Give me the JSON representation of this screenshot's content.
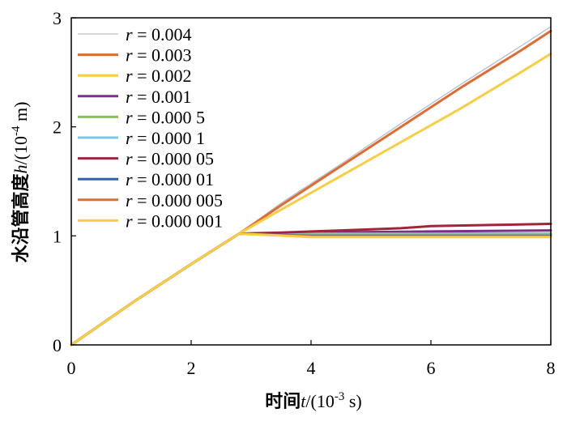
{
  "chart_data": {
    "type": "line",
    "xlabel_cn": "时间",
    "xlabel_var": "t",
    "xlabel_unit": "/(10",
    "xlabel_exp": "-3",
    "xlabel_unit_end": " s)",
    "ylabel_cn": "水沿管高度",
    "ylabel_var": "h",
    "ylabel_unit": "/(10",
    "ylabel_exp": "-4",
    "ylabel_unit_end": " m)",
    "xlim": [
      0,
      8
    ],
    "ylim": [
      0,
      3
    ],
    "x_ticks": [
      0,
      2,
      4,
      6,
      8
    ],
    "y_ticks": [
      0,
      1,
      2,
      3
    ],
    "x_tick_labels": [
      "0",
      "2",
      "4",
      "6",
      "8"
    ],
    "y_tick_labels": [
      "0",
      "1",
      "2",
      "3"
    ],
    "grid": false,
    "legend_position": "top-left",
    "series": [
      {
        "name": "r = 0.004",
        "legend_var": "r",
        "legend_val": " = 0.004",
        "color": "#b9bdc9",
        "width": 1.3,
        "x": [
          0,
          1,
          2,
          2.8,
          3.5,
          4.5,
          5.5,
          6.5,
          7.5,
          8
        ],
        "y": [
          0,
          0.38,
          0.74,
          1.02,
          1.3,
          1.66,
          2.03,
          2.39,
          2.74,
          2.92
        ]
      },
      {
        "name": "r = 0.003",
        "legend_var": "r",
        "legend_val": " = 0.003",
        "color": "#e06b32",
        "width": 3,
        "x": [
          0,
          1,
          2,
          2.8,
          3.5,
          4.5,
          5.5,
          6.5,
          7.5,
          8
        ],
        "y": [
          0,
          0.38,
          0.74,
          1.02,
          1.28,
          1.64,
          2.0,
          2.36,
          2.7,
          2.88
        ]
      },
      {
        "name": "r = 0.002",
        "legend_var": "r",
        "legend_val": " = 0.002",
        "color": "#f7cd42",
        "width": 3,
        "x": [
          0,
          1,
          2,
          2.8,
          3.5,
          4.5,
          5.5,
          6.5,
          7.5,
          8
        ],
        "y": [
          0,
          0.38,
          0.74,
          1.02,
          1.24,
          1.55,
          1.86,
          2.17,
          2.5,
          2.67
        ]
      },
      {
        "name": "r = 0.001",
        "legend_var": "r",
        "legend_val": " = 0.001",
        "color": "#7b2f8c",
        "width": 3,
        "x": [
          0,
          1,
          2,
          2.8,
          4,
          5,
          6,
          7,
          8
        ],
        "y": [
          0,
          0.38,
          0.74,
          1.02,
          1.03,
          1.035,
          1.04,
          1.045,
          1.05
        ]
      },
      {
        "name": "r = 0.000 5",
        "legend_var": "r",
        "legend_val": " = 0.000 5",
        "color": "#8cc04d",
        "width": 3,
        "x": [
          0,
          1,
          2,
          2.8,
          4,
          5,
          6,
          7,
          8
        ],
        "y": [
          0,
          0.38,
          0.74,
          1.02,
          1.02,
          1.02,
          1.02,
          1.02,
          1.02
        ]
      },
      {
        "name": "r = 0.000 1",
        "legend_var": "r",
        "legend_val": " = 0.000 1",
        "color": "#7cc6e8",
        "width": 3,
        "x": [
          0,
          1,
          2,
          2.8,
          4,
          5,
          6,
          7,
          8
        ],
        "y": [
          0,
          0.38,
          0.74,
          1.02,
          1.01,
          1.01,
          1.01,
          1.01,
          1.01
        ]
      },
      {
        "name": "r = 0.000 05",
        "legend_var": "r",
        "legend_val": " = 0.000 05",
        "color": "#a3233f",
        "width": 3,
        "x": [
          0,
          1,
          2,
          2.8,
          3.5,
          4.5,
          5.5,
          6,
          7,
          8
        ],
        "y": [
          0,
          0.38,
          0.74,
          1.02,
          1.03,
          1.05,
          1.07,
          1.09,
          1.1,
          1.11
        ]
      },
      {
        "name": "r = 0.000 01",
        "legend_var": "r",
        "legend_val": " = 0.000 01",
        "color": "#2f5fae",
        "width": 3,
        "x": [
          0,
          1,
          2,
          2.8,
          4,
          5,
          6,
          7,
          8
        ],
        "y": [
          0,
          0.38,
          0.74,
          1.02,
          1.0,
          1.0,
          1.0,
          1.0,
          1.0
        ]
      },
      {
        "name": "r = 0.000 005",
        "legend_var": "r",
        "legend_val": " = 0.000 005",
        "color": "#e06b32",
        "width": 3,
        "x": [
          0,
          1,
          2,
          2.8,
          4,
          5,
          6,
          7,
          8
        ],
        "y": [
          0,
          0.38,
          0.74,
          1.02,
          0.995,
          0.995,
          0.995,
          0.995,
          0.995
        ]
      },
      {
        "name": "r = 0.000 001",
        "legend_var": "r",
        "legend_val": " = 0.000 001",
        "color": "#f7cd42",
        "width": 3,
        "x": [
          0,
          1,
          2,
          2.8,
          4,
          5,
          6,
          7,
          8
        ],
        "y": [
          0,
          0.38,
          0.74,
          1.02,
          0.99,
          0.99,
          0.99,
          0.99,
          0.99
        ]
      }
    ]
  }
}
